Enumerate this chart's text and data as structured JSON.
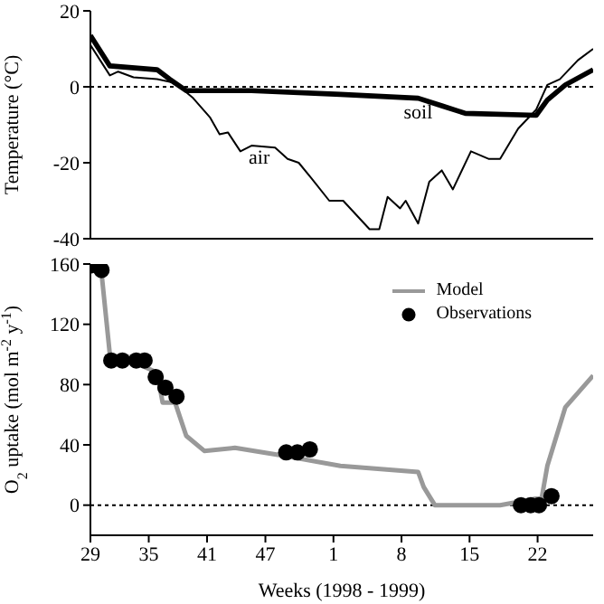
{
  "chart_data": [
    {
      "type": "line",
      "ylabel": "Temperature (°C)",
      "xlim": [
        "1998-07-13",
        "1999-07-10"
      ],
      "xticks": [
        {
          "value": "1998-07-13",
          "label": null
        },
        {
          "value": "1998-08-24",
          "label": null
        },
        {
          "value": "1998-10-05",
          "label": null
        },
        {
          "value": "1998-11-16",
          "label": null
        },
        {
          "value": "1999-01-04",
          "label": null
        },
        {
          "value": "1999-02-22",
          "label": null
        },
        {
          "value": "1999-04-12",
          "label": null
        },
        {
          "value": "1999-05-31",
          "label": null
        }
      ],
      "ylim": [
        -40,
        20
      ],
      "yticks": [
        -40,
        -20,
        0,
        20
      ],
      "tick_labels": "y",
      "legend": false,
      "ref_lines": [
        {
          "axis": "y",
          "value": 0,
          "line_style": "dotted",
          "color": "#000000"
        }
      ],
      "series": [
        {
          "name": "soil",
          "color": "#000000",
          "x": [
            "1998-07-13",
            "1998-07-27",
            "1998-08-30",
            "1998-09-08",
            "1998-09-20",
            "1998-11-06",
            "1999-01-09",
            "1999-03-06",
            "1999-03-23",
            "1999-04-09",
            "1999-05-30",
            "1999-06-07",
            "1999-06-20",
            "1999-07-10"
          ],
          "values": [
            13.5,
            5.5,
            4.5,
            2,
            -1,
            -1,
            -2,
            -3,
            -5,
            -7,
            -7.5,
            -3.5,
            0.5,
            4.5
          ]
        },
        {
          "name": "air",
          "color": "#000000",
          "x": [
            "1998-07-13",
            "1998-07-27",
            "1998-08-02",
            "1998-08-13",
            "1998-08-30",
            "1998-09-12",
            "1998-09-25",
            "1998-10-07",
            "1998-10-14",
            "1998-10-20",
            "1998-10-29",
            "1998-11-06",
            "1998-11-23",
            "1998-12-02",
            "1998-12-10",
            "1998-12-19",
            "1999-01-01",
            "1999-01-11",
            "1999-01-30",
            "1999-02-06",
            "1999-02-12",
            "1999-02-21",
            "1999-02-25",
            "1999-03-06",
            "1999-03-14",
            "1999-03-23",
            "1999-03-31",
            "1999-04-13",
            "1999-04-26",
            "1999-05-04",
            "1999-05-17",
            "1999-05-30",
            "1999-06-07",
            "1999-06-16",
            "1999-06-29",
            "1999-07-10"
          ],
          "values": [
            11,
            3,
            4,
            2.5,
            2,
            1,
            -3,
            -8,
            -12.5,
            -12,
            -17,
            -15.5,
            -16,
            -19,
            -20,
            -24,
            -30,
            -30,
            -37.5,
            -37.5,
            -29,
            -32,
            -30,
            -36,
            -25,
            -22,
            -27,
            -17,
            -19,
            -19,
            -11,
            -6,
            0.5,
            2,
            7,
            10
          ]
        }
      ]
    },
    {
      "type": "line",
      "xlabel": "Weeks (1998 - 1999)",
      "ylabel": "O$_{2}$ uptake (mol m$^{-2}$ y$^{-1}$)",
      "xlim": [
        "1998-07-13",
        "1999-07-10"
      ],
      "xticks": [
        {
          "value": "1998-07-13",
          "label": "29"
        },
        {
          "value": "1998-08-24",
          "label": "35"
        },
        {
          "value": "1998-10-05",
          "label": "41"
        },
        {
          "value": "1998-11-16",
          "label": "47"
        },
        {
          "value": "1999-01-04",
          "label": "1"
        },
        {
          "value": "1999-02-22",
          "label": "8"
        },
        {
          "value": "1999-04-12",
          "label": "15"
        },
        {
          "value": "1999-05-31",
          "label": "22"
        }
      ],
      "ylim": [
        -20,
        160
      ],
      "yticks": [
        0,
        40,
        80,
        120,
        160
      ],
      "legend": "top right",
      "ref_lines": [
        {
          "axis": "y",
          "value": 0,
          "line_style": "dotted",
          "color": "#000000"
        }
      ],
      "series": [
        {
          "name": "Model",
          "color": "#999999",
          "x": [
            "1998-07-13",
            "1998-07-21",
            "1998-07-27",
            "1998-08-13",
            "1998-08-30",
            "1998-09-03",
            "1998-09-12",
            "1998-09-20",
            "1998-10-03",
            "1998-10-25",
            "1998-11-28",
            "1999-01-09",
            "1999-03-06",
            "1999-03-10",
            "1999-03-18",
            "1999-05-04",
            "1999-06-03",
            "1999-06-07",
            "1999-06-20",
            "1999-07-10"
          ],
          "values": [
            160,
            154,
            100,
            95,
            88,
            68,
            68,
            46,
            36,
            38,
            33,
            26,
            22,
            12,
            0,
            0,
            5,
            26,
            65,
            86
          ]
        },
        {
          "name": "Observations",
          "type": "scatter",
          "marker": "circle",
          "color": "#000000",
          "x": [
            "1998-07-13",
            "1998-07-21",
            "1998-07-28",
            "1998-08-05",
            "1998-08-15",
            "1998-08-21",
            "1998-08-29",
            "1998-09-05",
            "1998-09-13",
            "1998-12-01",
            "1998-12-09",
            "1998-12-18",
            "1999-05-19",
            "1999-05-26",
            "1999-06-01",
            "1999-06-10"
          ],
          "values": [
            159,
            156,
            96,
            96,
            96,
            96,
            85,
            78,
            72,
            35,
            35,
            37,
            0,
            0,
            0,
            6
          ]
        }
      ]
    }
  ]
}
